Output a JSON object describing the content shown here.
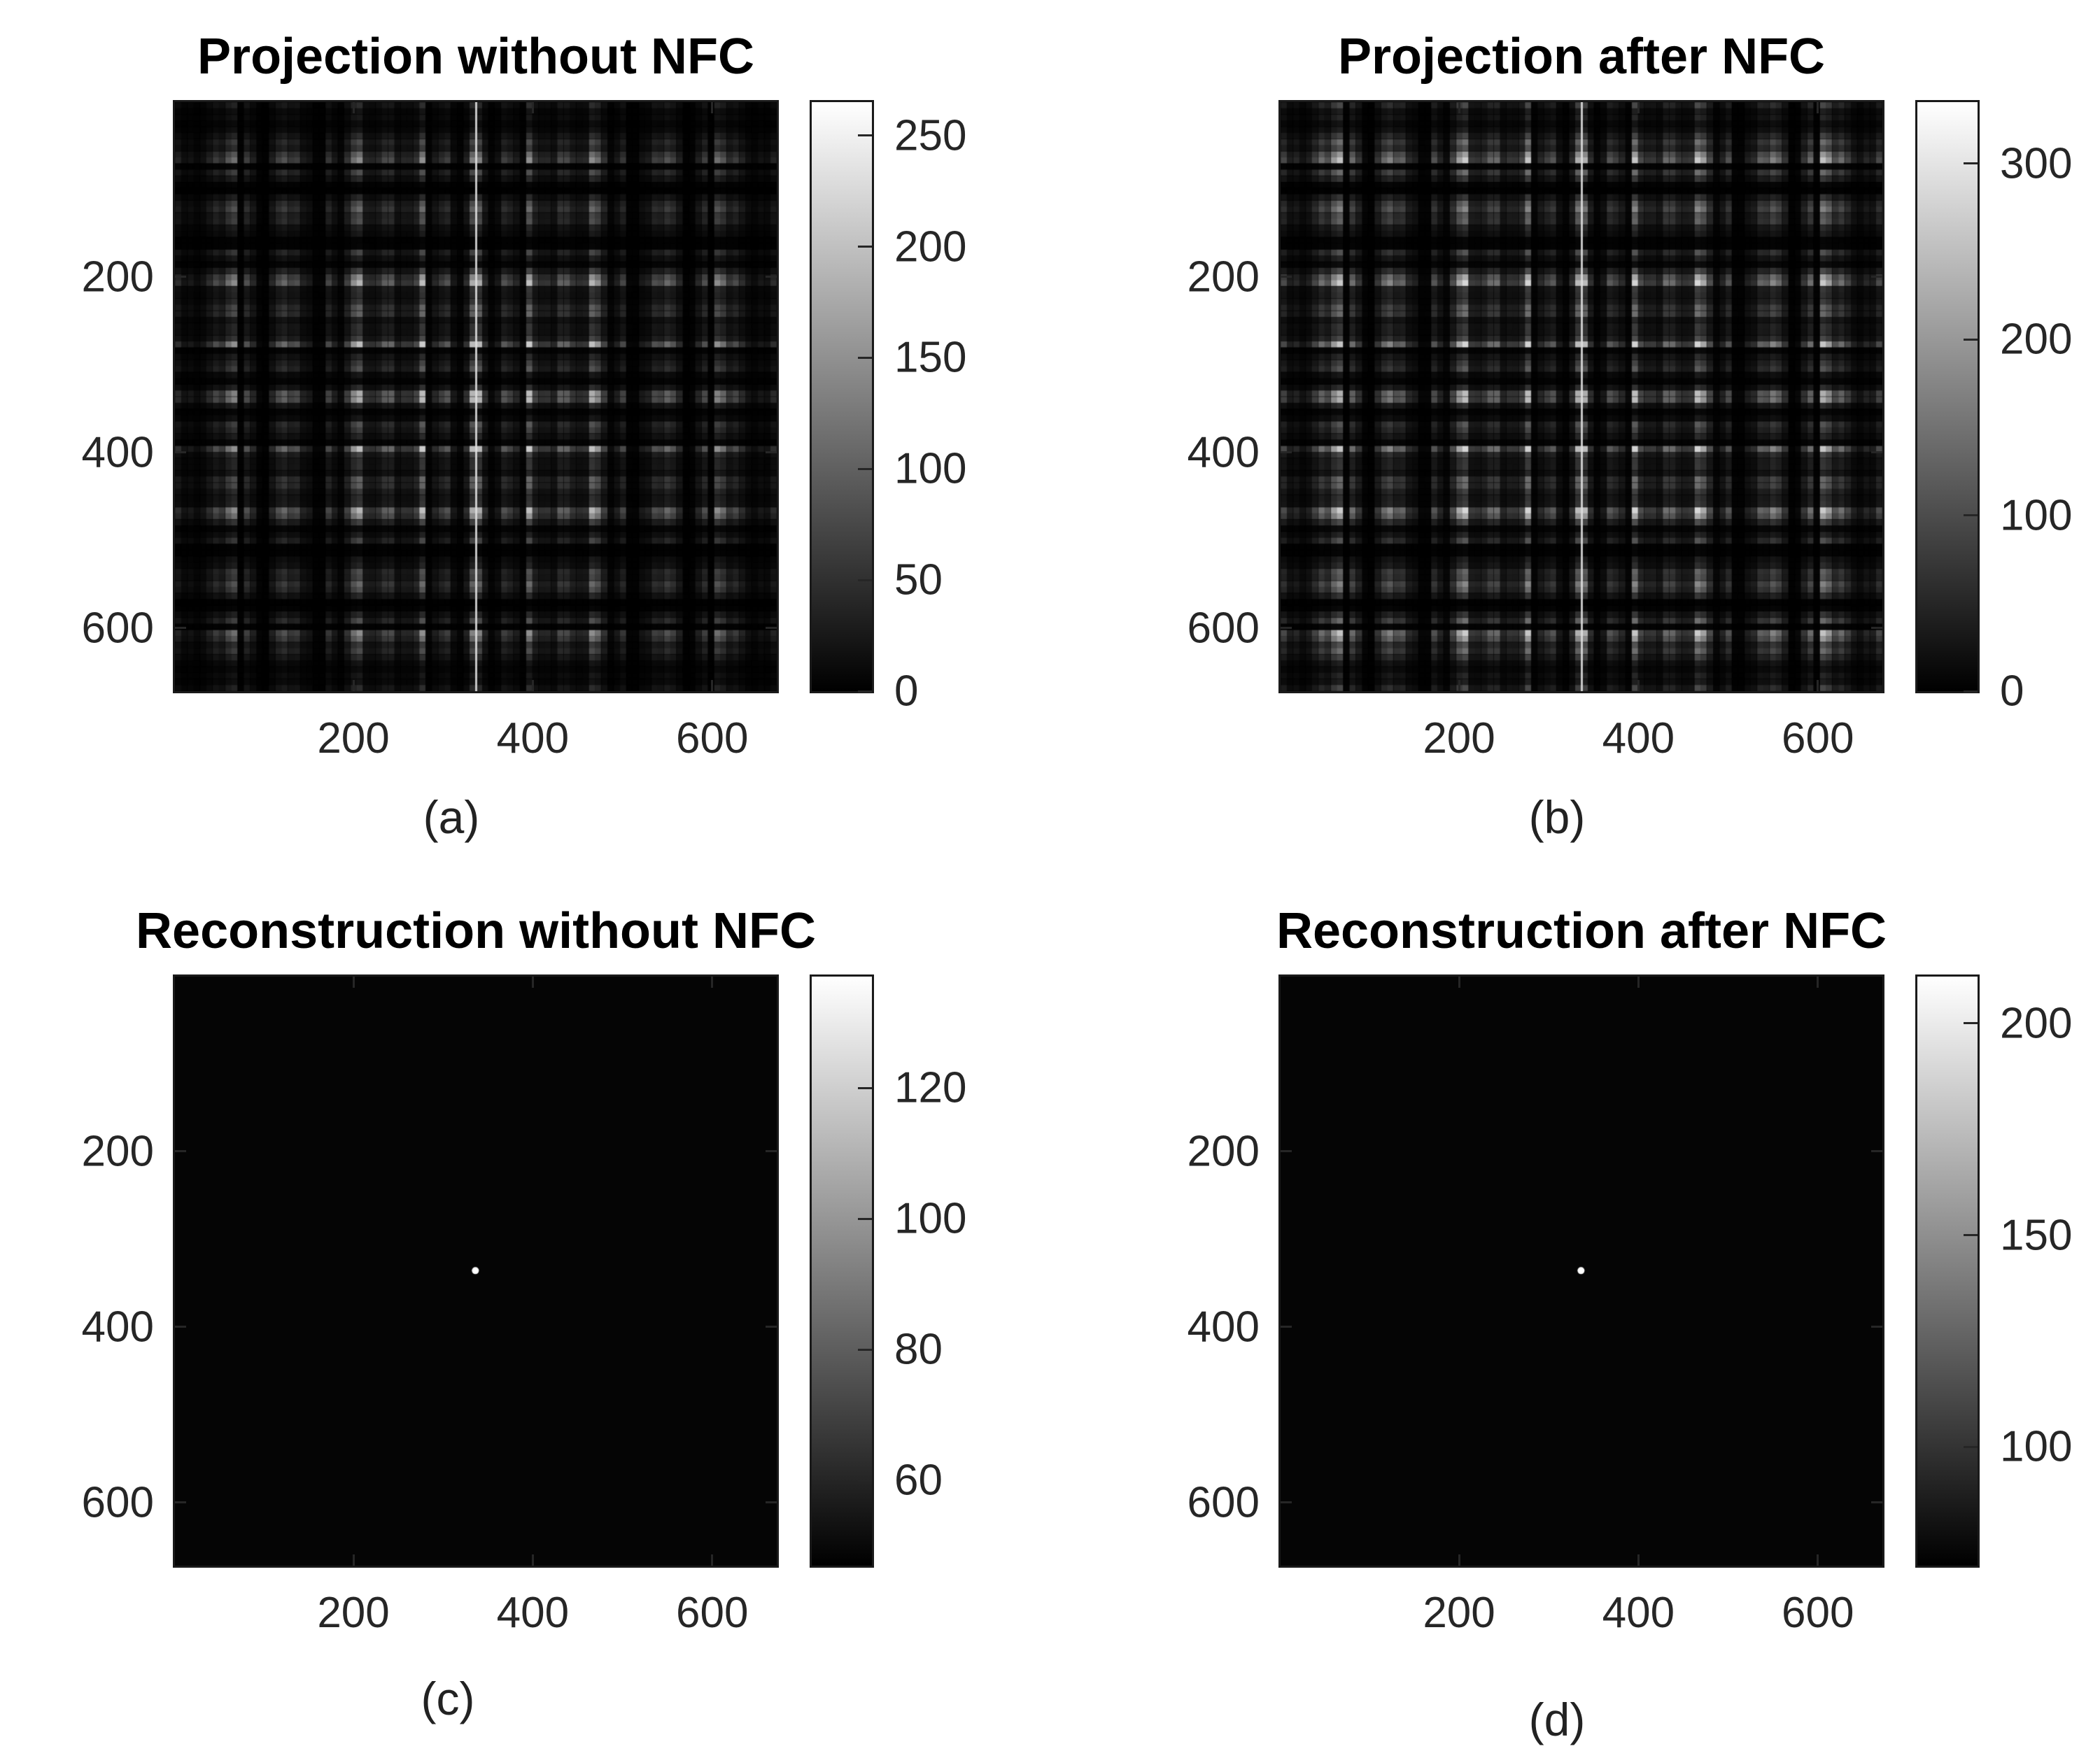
{
  "chart_data": [
    {
      "type": "heatmap",
      "panel": "a",
      "title": "Projection without NFC",
      "caption": "(a)",
      "xlabel": "",
      "ylabel": "",
      "xlim": [
        1,
        672
      ],
      "ylim": [
        1,
        672
      ],
      "x_ticks": [
        200,
        400,
        600
      ],
      "y_ticks": [
        200,
        400,
        600
      ],
      "colormap": "gray",
      "color_range": [
        0,
        265
      ],
      "colorbar_ticks": [
        0,
        50,
        100,
        150,
        200,
        250
      ],
      "content": "checkerboard-pattern",
      "grid": false,
      "legend": "none"
    },
    {
      "type": "heatmap",
      "panel": "b",
      "title": "Projection after NFC",
      "caption": "(b)",
      "xlabel": "",
      "ylabel": "",
      "xlim": [
        1,
        672
      ],
      "ylim": [
        1,
        672
      ],
      "x_ticks": [
        200,
        400,
        600
      ],
      "y_ticks": [
        200,
        400,
        600
      ],
      "colormap": "gray",
      "color_range": [
        0,
        335
      ],
      "colorbar_ticks": [
        0,
        100,
        200,
        300
      ],
      "content": "checkerboard-pattern",
      "grid": false,
      "legend": "none"
    },
    {
      "type": "heatmap",
      "panel": "c",
      "title": "Reconstruction without NFC",
      "caption": "(c)",
      "xlabel": "",
      "ylabel": "",
      "xlim": [
        1,
        672
      ],
      "ylim": [
        1,
        672
      ],
      "x_ticks": [
        200,
        400,
        600
      ],
      "y_ticks": [
        200,
        400,
        600
      ],
      "colormap": "gray",
      "color_range": [
        47,
        137
      ],
      "colorbar_ticks": [
        60,
        80,
        100,
        120
      ],
      "content": "point-source",
      "point": [
        336,
        336
      ],
      "grid": false,
      "legend": "none"
    },
    {
      "type": "heatmap",
      "panel": "d",
      "title": "Reconstruction after NFC",
      "caption": "(d)",
      "xlabel": "",
      "ylabel": "",
      "xlim": [
        1,
        672
      ],
      "ylim": [
        1,
        672
      ],
      "x_ticks": [
        200,
        400,
        600
      ],
      "y_ticks": [
        200,
        400,
        600
      ],
      "colormap": "gray",
      "color_range": [
        72,
        211
      ],
      "colorbar_ticks": [
        100,
        150,
        200
      ],
      "content": "point-source",
      "point": [
        336,
        336
      ],
      "grid": false,
      "legend": "none"
    }
  ]
}
